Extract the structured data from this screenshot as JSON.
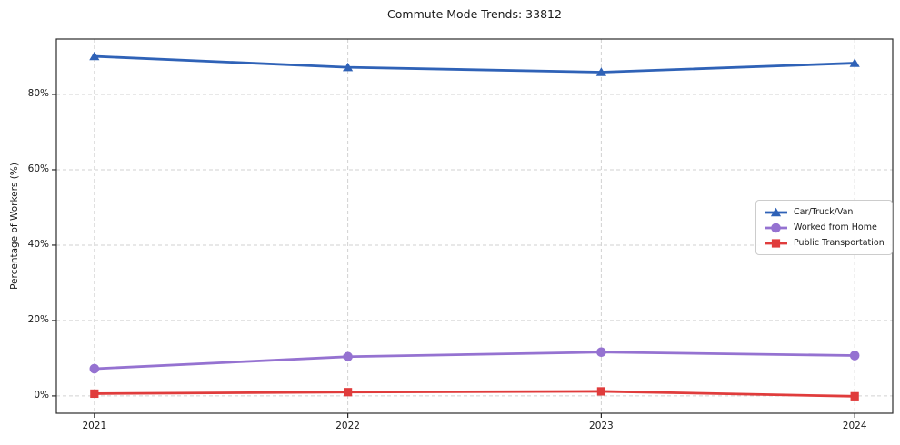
{
  "chart_data": {
    "type": "line",
    "title": "Commute Mode Trends: 33812",
    "xlabel": "",
    "ylabel": "Percentage of Workers (%)",
    "categories": [
      2021,
      2022,
      2023,
      2024
    ],
    "series": [
      {
        "name": "Car/Truck/Van",
        "color": "#2f62b7",
        "marker": "triangle",
        "values": [
          90.1,
          87.2,
          85.9,
          88.3
        ]
      },
      {
        "name": "Worked from Home",
        "color": "#9572d1",
        "marker": "circle",
        "values": [
          7.2,
          10.4,
          11.6,
          10.7
        ]
      },
      {
        "name": "Public Transportation",
        "color": "#e03c3c",
        "marker": "square",
        "values": [
          0.6,
          1.0,
          1.2,
          -0.1
        ]
      }
    ],
    "yticks": [
      0,
      20,
      40,
      60,
      80
    ],
    "ytick_labels": [
      "0%",
      "20%",
      "40%",
      "60%",
      "80%"
    ],
    "xtick_labels": [
      "2021",
      "2022",
      "2023",
      "2024"
    ],
    "xlim": [
      2020.85,
      2024.15
    ],
    "ylim": [
      -4.6,
      94.7
    ],
    "grid": true,
    "grid_style": "dashed",
    "grid_color": "#d2d2d2",
    "spine_color": "#2b2b2b",
    "legend_position": "center right"
  }
}
